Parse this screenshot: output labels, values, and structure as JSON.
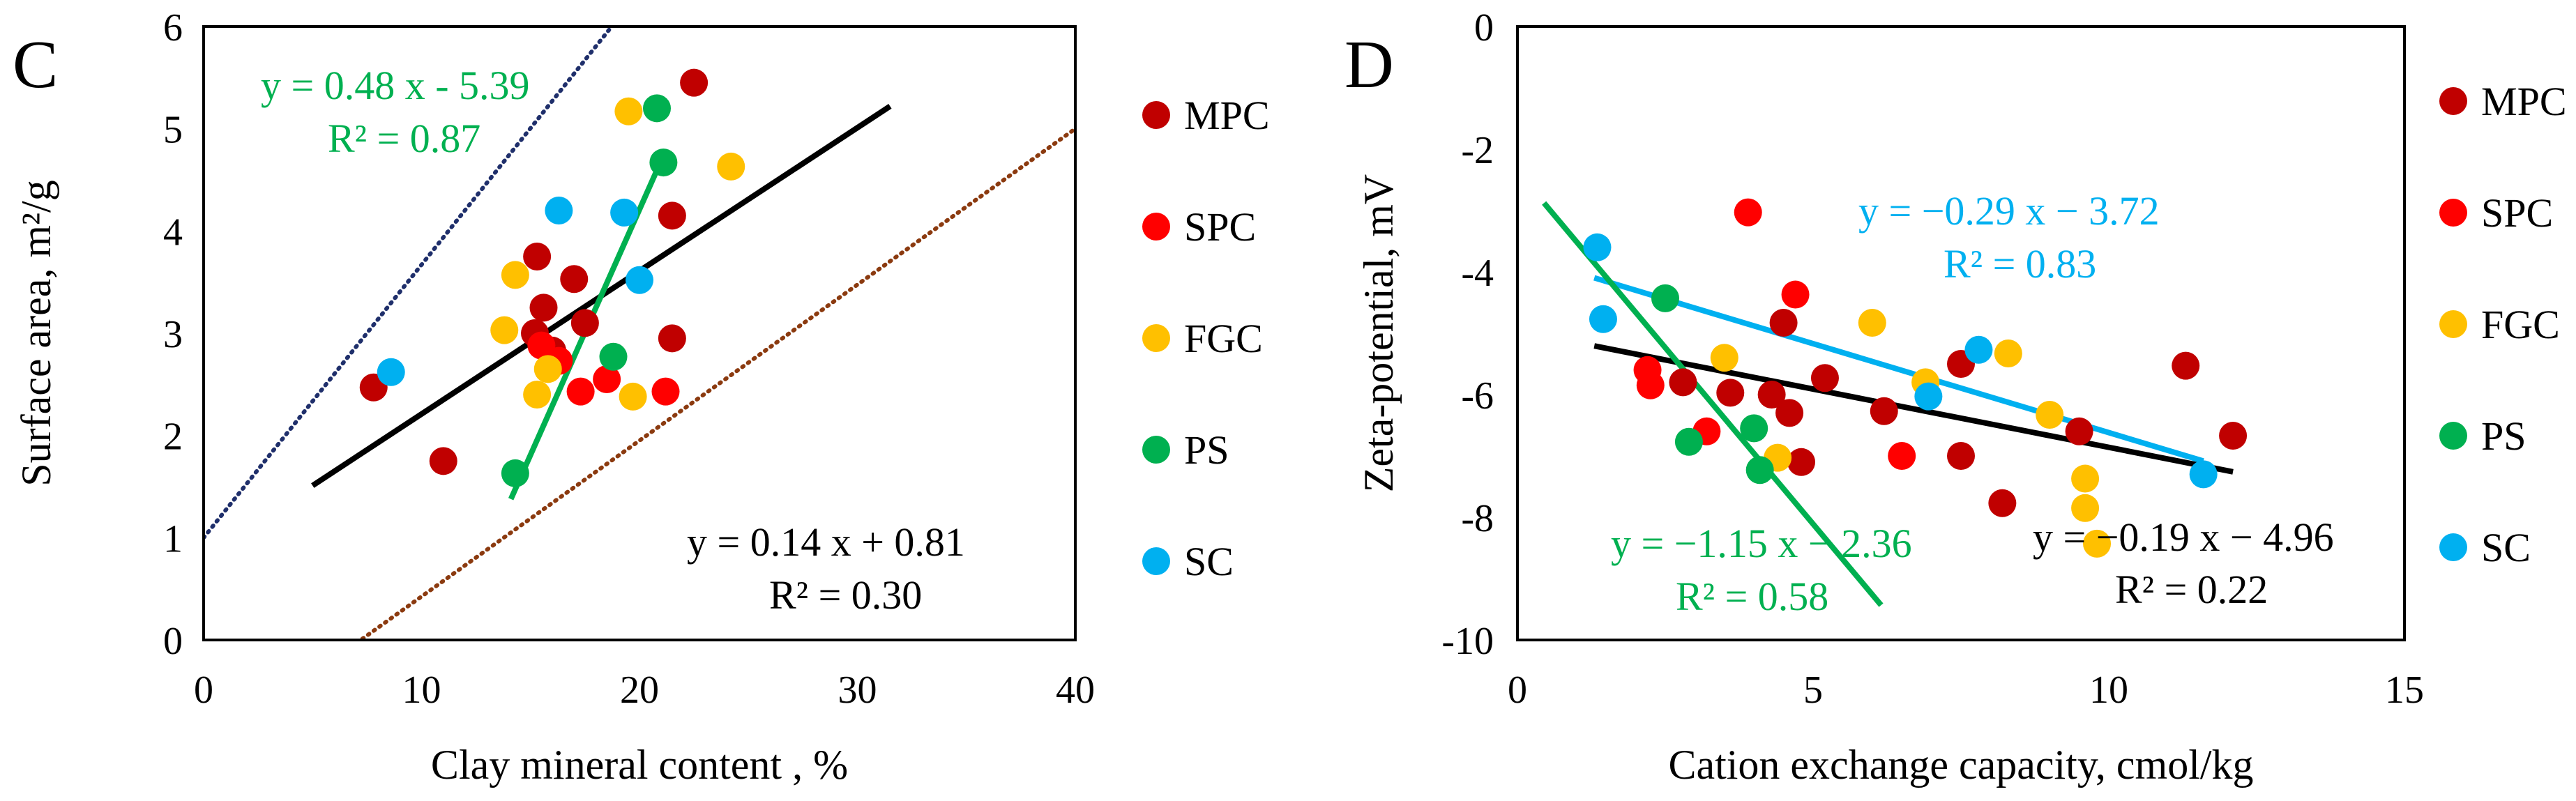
{
  "colors": {
    "MPC": "#C00000",
    "SPC": "#FF0000",
    "FGC": "#FFC000",
    "PS": "#00B050",
    "SC": "#00B0F0",
    "black": "#000000",
    "navy_dotted": "#1F2F6B",
    "brown_dotted": "#8B3A0F"
  },
  "legend": [
    "MPC",
    "SPC",
    "FGC",
    "PS",
    "SC"
  ],
  "chart_data": [
    {
      "type": "scatter",
      "panel_label": "C",
      "xlabel": "Clay mineral content , %",
      "ylabel": "Surface area, m²/g",
      "xlim": [
        0,
        40
      ],
      "ylim": [
        0,
        6
      ],
      "xticks": [
        "0",
        "10",
        "20",
        "30",
        "40"
      ],
      "yticks": [
        "0",
        "1",
        "2",
        "3",
        "4",
        "5",
        "6"
      ],
      "series": [
        {
          "name": "MPC",
          "points": [
            [
              7.8,
              2.47
            ],
            [
              11.0,
              1.75
            ],
            [
              15.3,
              3.75
            ],
            [
              15.6,
              3.25
            ],
            [
              16.0,
              2.83
            ],
            [
              17.0,
              3.53
            ],
            [
              17.5,
              3.1
            ],
            [
              21.5,
              4.15
            ],
            [
              21.5,
              2.95
            ],
            [
              22.5,
              5.45
            ],
            [
              15.2,
              3.0
            ]
          ]
        },
        {
          "name": "SPC",
          "points": [
            [
              15.5,
              2.88
            ],
            [
              16.3,
              2.73
            ],
            [
              17.3,
              2.43
            ],
            [
              18.5,
              2.55
            ],
            [
              21.2,
              2.43
            ]
          ]
        },
        {
          "name": "FGC",
          "points": [
            [
              13.8,
              3.03
            ],
            [
              14.3,
              3.57
            ],
            [
              15.3,
              2.4
            ],
            [
              15.8,
              2.65
            ],
            [
              19.5,
              5.17
            ],
            [
              19.7,
              2.38
            ],
            [
              24.2,
              4.63
            ]
          ]
        },
        {
          "name": "PS",
          "points": [
            [
              14.3,
              1.63
            ],
            [
              18.8,
              2.77
            ],
            [
              20.8,
              5.2
            ],
            [
              21.1,
              4.67
            ]
          ]
        },
        {
          "name": "SC",
          "points": [
            [
              8.6,
              2.62
            ],
            [
              16.3,
              4.2
            ],
            [
              19.3,
              4.18
            ],
            [
              20.0,
              3.52
            ]
          ]
        }
      ],
      "trendlines": [
        {
          "name": "all",
          "equation": "y = 0.14 x + 0.81",
          "r2": "R² = 0.30",
          "slope": 0.14,
          "intercept": 0.81,
          "x_range": [
            5.0,
            31.5
          ],
          "color": "black"
        },
        {
          "name": "PS",
          "equation": "y = 0.48 x - 5.39",
          "r2": "R² = 0.87",
          "slope": 0.48,
          "intercept": -5.39,
          "x_range": [
            14.1,
            21.2
          ],
          "color": "PS"
        }
      ],
      "bound_lines": [
        {
          "name": "upper-bound",
          "slope": 0.267,
          "intercept": 1.0,
          "color": "navy_dotted"
        },
        {
          "name": "lower-bound",
          "slope": 0.1525,
          "intercept": -1.1,
          "color": "brown_dotted"
        }
      ]
    },
    {
      "type": "scatter",
      "panel_label": "D",
      "xlabel": "Cation exchange capacity, cmol/kg",
      "ylabel": "Zeta-potential, mV",
      "xlim": [
        0,
        15
      ],
      "ylim": [
        -10,
        0
      ],
      "xticks": [
        "0",
        "5",
        "10",
        "15"
      ],
      "yticks": [
        "-10",
        "-8",
        "-6",
        "-4",
        "-2",
        "0"
      ],
      "series": [
        {
          "name": "MPC",
          "points": [
            [
              2.8,
              -5.8
            ],
            [
              3.6,
              -5.97
            ],
            [
              4.3,
              -6.0
            ],
            [
              4.5,
              -4.83
            ],
            [
              4.6,
              -6.3
            ],
            [
              4.8,
              -7.1
            ],
            [
              5.2,
              -5.73
            ],
            [
              6.2,
              -6.27
            ],
            [
              7.5,
              -5.5
            ],
            [
              7.5,
              -7.0
            ],
            [
              8.2,
              -7.77
            ],
            [
              9.5,
              -6.6
            ],
            [
              11.3,
              -5.53
            ],
            [
              12.1,
              -6.67
            ]
          ]
        },
        {
          "name": "SPC",
          "points": [
            [
              2.2,
              -5.6
            ],
            [
              2.25,
              -5.85
            ],
            [
              3.2,
              -6.6
            ],
            [
              3.9,
              -3.03
            ],
            [
              4.7,
              -4.37
            ],
            [
              6.5,
              -7.0
            ]
          ]
        },
        {
          "name": "FGC",
          "points": [
            [
              3.5,
              -5.4
            ],
            [
              4.4,
              -7.03
            ],
            [
              6.0,
              -4.83
            ],
            [
              6.9,
              -5.8
            ],
            [
              8.3,
              -5.33
            ],
            [
              9.0,
              -6.33
            ],
            [
              9.6,
              -7.37
            ],
            [
              9.6,
              -7.85
            ],
            [
              9.8,
              -8.43
            ]
          ]
        },
        {
          "name": "PS",
          "points": [
            [
              2.5,
              -4.43
            ],
            [
              2.9,
              -6.77
            ],
            [
              4.0,
              -6.55
            ],
            [
              4.1,
              -7.23
            ]
          ]
        },
        {
          "name": "SC",
          "points": [
            [
              1.35,
              -3.6
            ],
            [
              1.45,
              -4.77
            ],
            [
              6.95,
              -6.03
            ],
            [
              7.8,
              -5.27
            ],
            [
              11.6,
              -7.3
            ]
          ]
        }
      ],
      "trendlines": [
        {
          "name": "all",
          "equation": "y = −0.19 x − 4.96",
          "r2": "R² = 0.22",
          "slope": -0.19,
          "intercept": -4.96,
          "x_range": [
            1.3,
            12.1
          ],
          "color": "black"
        },
        {
          "name": "SC",
          "equation": "y = −0.29 x − 3.72",
          "r2": "R² = 0.83",
          "slope": -0.29,
          "intercept": -3.72,
          "x_range": [
            1.3,
            11.6
          ],
          "color": "SC"
        },
        {
          "name": "PS",
          "equation": "y = −1.15 x − 2.36",
          "r2": "R² = 0.58",
          "slope": -1.15,
          "intercept": -2.36,
          "x_range": [
            0.45,
            6.15
          ],
          "color": "PS"
        }
      ]
    }
  ]
}
